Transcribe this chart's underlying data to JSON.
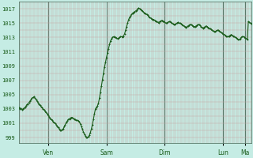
{
  "background_color": "#c5ece4",
  "plot_bg_color": "#c5ece4",
  "line_color": "#1a5c1a",
  "marker": "+",
  "marker_size": 2,
  "line_width": 0.8,
  "yticks": [
    999,
    1001,
    1003,
    1005,
    1007,
    1009,
    1011,
    1013,
    1015,
    1017
  ],
  "ylim": [
    998.2,
    1018.0
  ],
  "xlim": [
    0,
    285
  ],
  "xtick_labels": [
    "Ven",
    "Sam",
    "Dim",
    "Lun",
    "Ma"
  ],
  "grid_color_minor": "#c8a0a0",
  "grid_color_major": "#5a7a6a",
  "tick_label_color": "#1a5c1a",
  "pressure_data": [
    1003.2,
    1003.0,
    1003.1,
    1002.9,
    1003.0,
    1003.1,
    1003.2,
    1003.4,
    1003.6,
    1003.7,
    1003.9,
    1004.1,
    1004.3,
    1004.5,
    1004.6,
    1004.7,
    1004.5,
    1004.3,
    1004.1,
    1003.9,
    1003.7,
    1003.5,
    1003.3,
    1003.2,
    1003.0,
    1002.9,
    1002.7,
    1002.5,
    1002.3,
    1002.1,
    1001.9,
    1001.7,
    1001.5,
    1001.4,
    1001.2,
    1001.1,
    1001.0,
    1000.8,
    1000.6,
    1000.4,
    1000.2,
    1000.0,
    1000.0,
    1000.1,
    1000.2,
    1000.5,
    1000.8,
    1001.1,
    1001.3,
    1001.5,
    1001.6,
    1001.7,
    1001.8,
    1001.8,
    1001.7,
    1001.6,
    1001.5,
    1001.4,
    1001.4,
    1001.3,
    1001.2,
    1000.9,
    1000.6,
    1000.2,
    999.8,
    999.5,
    999.2,
    999.0,
    999.0,
    999.1,
    999.3,
    999.7,
    1000.2,
    1000.8,
    1001.5,
    1002.3,
    1003.0,
    1003.2,
    1003.4,
    1003.8,
    1004.5,
    1005.3,
    1006.2,
    1007.1,
    1008.0,
    1008.8,
    1009.5,
    1010.2,
    1010.8,
    1011.4,
    1012.0,
    1012.5,
    1012.8,
    1013.0,
    1013.1,
    1013.0,
    1013.0,
    1012.9,
    1012.8,
    1012.9,
    1013.0,
    1013.1,
    1013.1,
    1013.0,
    1013.2,
    1013.5,
    1014.0,
    1014.5,
    1015.0,
    1015.5,
    1015.8,
    1016.0,
    1016.2,
    1016.4,
    1016.5,
    1016.6,
    1016.7,
    1016.8,
    1017.0,
    1017.1,
    1017.0,
    1016.9,
    1016.8,
    1016.7,
    1016.5,
    1016.4,
    1016.3,
    1016.2,
    1016.1,
    1015.9,
    1015.8,
    1015.7,
    1015.6,
    1015.5,
    1015.5,
    1015.4,
    1015.3,
    1015.2,
    1015.1,
    1015.0,
    1015.2,
    1015.3,
    1015.4,
    1015.3,
    1015.2,
    1015.1,
    1015.0,
    1015.0,
    1015.1,
    1015.2,
    1015.2,
    1015.1,
    1015.0,
    1014.9,
    1014.8,
    1014.8,
    1014.9,
    1015.0,
    1015.1,
    1015.0,
    1015.0,
    1014.9,
    1014.8,
    1014.7,
    1014.6,
    1014.5,
    1014.4,
    1014.5,
    1014.6,
    1014.7,
    1014.8,
    1014.8,
    1014.7,
    1014.6,
    1014.5,
    1014.5,
    1014.6,
    1014.7,
    1014.8,
    1014.8,
    1014.7,
    1014.5,
    1014.4,
    1014.3,
    1014.4,
    1014.5,
    1014.6,
    1014.5,
    1014.4,
    1014.3,
    1014.2,
    1014.1,
    1014.0,
    1013.9,
    1013.8,
    1013.8,
    1013.9,
    1014.0,
    1014.0,
    1013.9,
    1013.8,
    1013.7,
    1013.6,
    1013.5,
    1013.4,
    1013.3,
    1013.2,
    1013.1,
    1013.1,
    1013.2,
    1013.3,
    1013.4,
    1013.3,
    1013.2,
    1013.1,
    1013.0,
    1012.9,
    1012.8,
    1012.7,
    1012.7,
    1012.8,
    1013.0,
    1013.1,
    1013.1,
    1013.0,
    1012.9,
    1012.8,
    1012.7,
    1015.2,
    1015.1,
    1015.0,
    1014.9
  ]
}
